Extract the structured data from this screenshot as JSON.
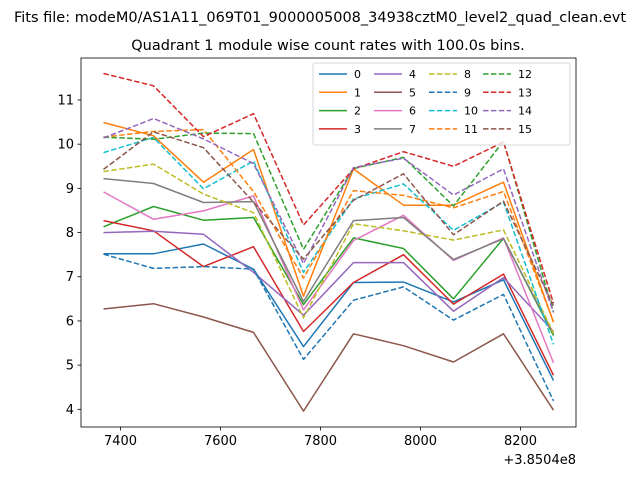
{
  "chart_data": {
    "type": "line",
    "suptitle": "Fits file: modeM0/AS1A11_069T01_9000005008_34938cztM0_level2_quad_clean.evt",
    "title": "Quadrant 1 module wise count rates with 100.0s bins.",
    "xlabel": "",
    "ylabel": "",
    "x_offset_label": "+3.8504e8",
    "x": [
      7366,
      7466,
      7566,
      7666,
      7766,
      7866,
      7966,
      8066,
      8166,
      8266
    ],
    "xlim": [
      7321,
      8311
    ],
    "ylim": [
      3.6,
      11.95
    ],
    "x_ticks": [
      7400,
      7600,
      7800,
      8000,
      8200
    ],
    "y_ticks": [
      4,
      5,
      6,
      7,
      8,
      9,
      10,
      11
    ],
    "grid": false,
    "legend": {
      "placement": "top-right",
      "columns": 4
    },
    "series": [
      {
        "name": "0",
        "color": "#1f77b4",
        "dash": "solid",
        "values": [
          7.52,
          7.52,
          7.74,
          7.17,
          5.42,
          6.87,
          6.88,
          6.43,
          6.93,
          4.65
        ]
      },
      {
        "name": "1",
        "color": "#ff7f0e",
        "dash": "solid",
        "values": [
          10.49,
          10.19,
          9.14,
          9.88,
          6.56,
          9.44,
          8.62,
          8.62,
          9.14,
          5.97
        ]
      },
      {
        "name": "2",
        "color": "#2ca02c",
        "dash": "solid",
        "values": [
          8.13,
          8.59,
          8.28,
          8.34,
          6.37,
          7.88,
          7.64,
          6.5,
          7.87,
          5.67
        ]
      },
      {
        "name": "3",
        "color": "#d62728",
        "dash": "solid",
        "values": [
          8.27,
          8.04,
          7.23,
          7.68,
          5.76,
          6.87,
          7.5,
          6.38,
          7.06,
          4.77
        ]
      },
      {
        "name": "4",
        "color": "#9467bd",
        "dash": "solid",
        "values": [
          8.0,
          8.03,
          7.96,
          7.1,
          6.13,
          7.32,
          7.32,
          6.22,
          6.98,
          5.76
        ]
      },
      {
        "name": "5",
        "color": "#8c564b",
        "dash": "solid",
        "values": [
          6.27,
          6.39,
          6.09,
          5.74,
          3.96,
          5.71,
          5.44,
          5.07,
          5.71,
          3.98
        ]
      },
      {
        "name": "6",
        "color": "#e377c2",
        "dash": "solid",
        "values": [
          8.92,
          8.3,
          8.49,
          8.83,
          6.25,
          7.82,
          8.39,
          7.37,
          7.88,
          5.05
        ]
      },
      {
        "name": "7",
        "color": "#7f7f7f",
        "dash": "solid",
        "values": [
          9.22,
          9.11,
          8.68,
          8.7,
          6.44,
          8.27,
          8.34,
          7.39,
          7.86,
          5.71
        ]
      },
      {
        "name": "8",
        "color": "#bcbd22",
        "dash": "dashed",
        "values": [
          9.38,
          9.55,
          8.87,
          8.45,
          6.07,
          8.2,
          8.04,
          7.83,
          8.06,
          5.72
        ]
      },
      {
        "name": "9",
        "color": "#1f77b4",
        "dash": "dashed",
        "values": [
          7.51,
          7.19,
          7.23,
          7.17,
          5.13,
          6.47,
          6.77,
          6.02,
          6.6,
          4.19
        ]
      },
      {
        "name": "10",
        "color": "#17becf",
        "dash": "dashed",
        "values": [
          9.81,
          10.15,
          8.99,
          9.62,
          7.1,
          8.76,
          9.1,
          8.05,
          8.69,
          5.47
        ]
      },
      {
        "name": "11",
        "color": "#ff7f0e",
        "dash": "dashed",
        "values": [
          10.16,
          10.29,
          10.33,
          8.93,
          6.97,
          8.95,
          8.84,
          8.56,
          8.93,
          5.98
        ]
      },
      {
        "name": "12",
        "color": "#2ca02c",
        "dash": "dashed",
        "values": [
          10.16,
          10.11,
          10.25,
          10.24,
          7.62,
          9.45,
          9.7,
          8.6,
          10.07,
          6.2
        ]
      },
      {
        "name": "13",
        "color": "#d62728",
        "dash": "dashed",
        "values": [
          11.6,
          11.32,
          10.17,
          10.69,
          8.17,
          9.44,
          9.83,
          9.5,
          10.05,
          6.4
        ]
      },
      {
        "name": "14",
        "color": "#9467bd",
        "dash": "dashed",
        "values": [
          10.14,
          10.58,
          10.12,
          9.56,
          7.3,
          9.47,
          9.68,
          8.85,
          9.44,
          6.19
        ]
      },
      {
        "name": "15",
        "color": "#8c564b",
        "dash": "dashed",
        "values": [
          9.43,
          10.28,
          9.92,
          8.69,
          7.4,
          8.73,
          9.33,
          7.95,
          8.71,
          6.34
        ]
      }
    ]
  }
}
